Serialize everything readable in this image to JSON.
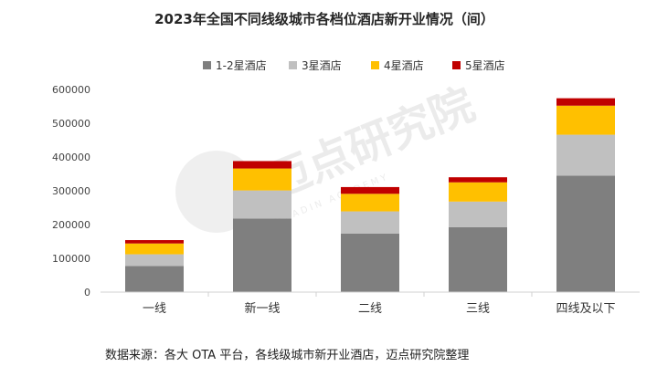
{
  "chart_data": {
    "type": "bar",
    "stacked": true,
    "title": "2023年全国不同线级城市各档位酒店新开业情况（间）",
    "categories": [
      "一线",
      "新一线",
      "二线",
      "三线",
      "四线及以下"
    ],
    "series": [
      {
        "name": "1-2星酒店",
        "color": "#7f7f7f",
        "values": [
          77000,
          218000,
          173000,
          192000,
          345000
        ]
      },
      {
        "name": "3星酒店",
        "color": "#c0c0c0",
        "values": [
          35000,
          83000,
          66000,
          76000,
          121000
        ]
      },
      {
        "name": "4星酒店",
        "color": "#ffc000",
        "values": [
          32000,
          65000,
          52000,
          57000,
          86000
        ]
      },
      {
        "name": "5星酒店",
        "color": "#c00000",
        "values": [
          10000,
          22000,
          20000,
          15000,
          22000
        ]
      }
    ],
    "ylim": [
      0,
      600000
    ],
    "yticks": [
      0,
      100000,
      200000,
      300000,
      400000,
      500000,
      600000
    ],
    "ytick_labels": [
      "0",
      "100000",
      "200000",
      "300000",
      "400000",
      "500000",
      "600000"
    ],
    "grid": false,
    "legend_position": "top-center",
    "source": "数据来源：各大 OTA 平台，各线级城市新开业酒店，迈点研究院整理"
  },
  "watermark": {
    "name": "迈点研究院",
    "subtitle": "MEADIN ACADEMY"
  }
}
